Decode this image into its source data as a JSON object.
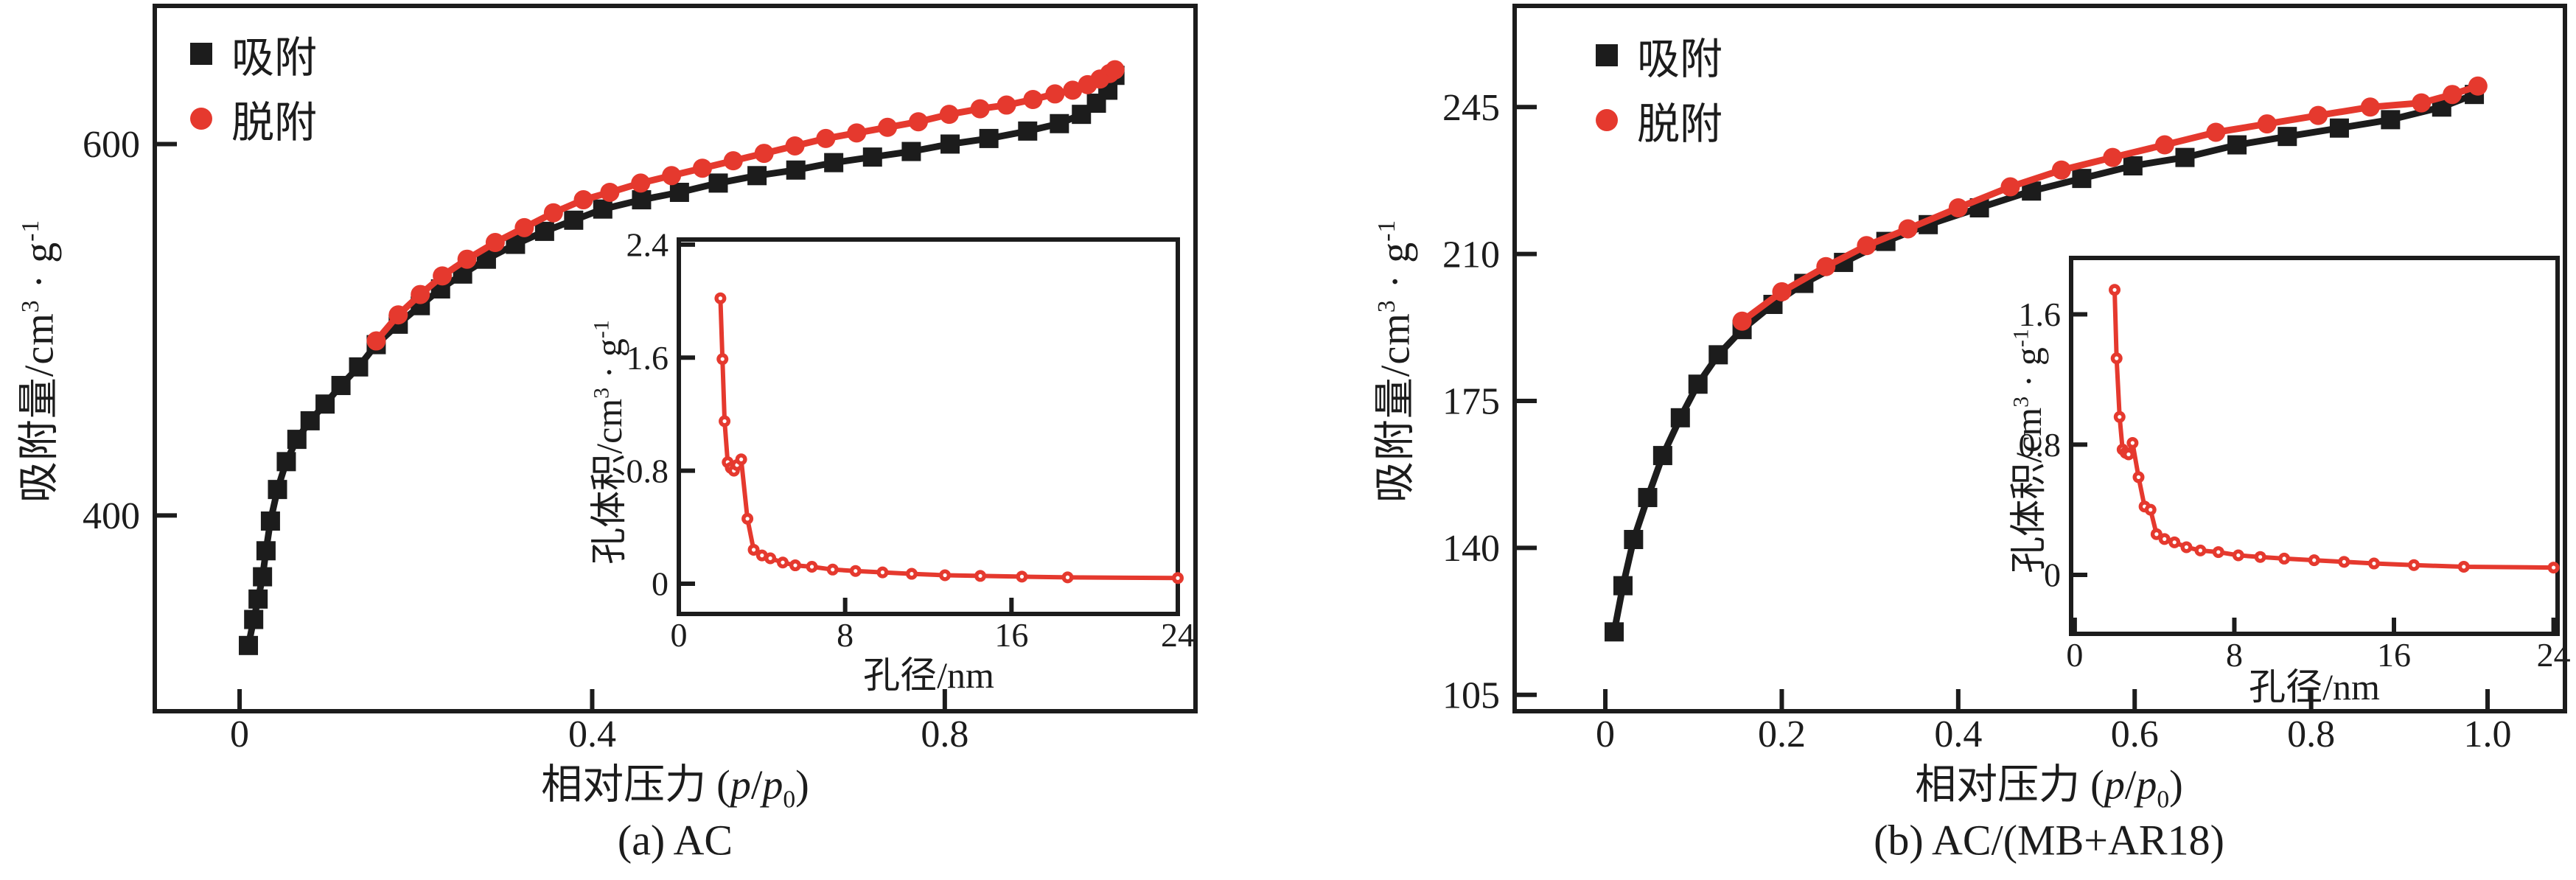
{
  "page": {
    "background": "#ffffff"
  },
  "colors": {
    "adsorption": "#1c1c1c",
    "desorption": "#e5392e",
    "frame": "#1c1c1c",
    "pore_curve": "#e5392e"
  },
  "legend": {
    "adsorption_label": "吸附",
    "desorption_label": "脱附"
  },
  "labels": {
    "y_main_prefix": "吸附量/cm",
    "y_main_sup1": "3",
    "y_main_mid": " · g",
    "y_main_sup2": "-1",
    "y_inset_prefix": "孔体积/cm",
    "y_inset_sup1": "3",
    "y_inset_mid": " · g",
    "y_inset_sup2": "-1",
    "x_main_prefix": "相对压力 (",
    "x_main_p1": "p",
    "x_main_slash": "/",
    "x_main_p2": "p",
    "x_main_sub": "0",
    "x_main_close": ")",
    "x_inset_label": "孔径/nm"
  },
  "captions": {
    "a": "(a) AC",
    "b": "(b) AC/(MB+AR18)"
  },
  "chart_data": [
    {
      "id": "a",
      "type": "line",
      "title": "(a) AC",
      "xlabel": "相对压力 (p/p0)",
      "ylabel": "吸附量/cm3·g-1",
      "xlim": [
        -0.0962,
        1.0844
      ],
      "ylim": [
        294.6,
        674.4
      ],
      "xticks": {
        "values": [
          0,
          0.4,
          0.8
        ],
        "labels": [
          "0",
          "0.4",
          "0.8"
        ]
      },
      "yticks": {
        "values": [
          400,
          600
        ],
        "labels": [
          "400",
          "600"
        ]
      },
      "legend_position": "top-left",
      "grid": false,
      "series": [
        {
          "name": "吸附",
          "marker": "square",
          "color": "#1c1c1c",
          "points": [
            [
              0.01,
              330
            ],
            [
              0.016,
              344
            ],
            [
              0.021,
              355
            ],
            [
              0.026,
              367
            ],
            [
              0.03,
              381
            ],
            [
              0.035,
              397
            ],
            [
              0.043,
              414
            ],
            [
              0.053,
              429
            ],
            [
              0.065,
              441
            ],
            [
              0.08,
              451
            ],
            [
              0.097,
              460
            ],
            [
              0.115,
              470
            ],
            [
              0.135,
              480
            ],
            [
              0.155,
              492
            ],
            [
              0.18,
              503
            ],
            [
              0.205,
              513
            ],
            [
              0.228,
              522
            ],
            [
              0.253,
              530
            ],
            [
              0.28,
              538
            ],
            [
              0.313,
              546
            ],
            [
              0.346,
              553
            ],
            [
              0.379,
              559
            ],
            [
              0.412,
              565
            ],
            [
              0.456,
              570
            ],
            [
              0.499,
              574
            ],
            [
              0.543,
              579
            ],
            [
              0.587,
              583
            ],
            [
              0.631,
              586
            ],
            [
              0.674,
              590
            ],
            [
              0.718,
              593
            ],
            [
              0.762,
              596
            ],
            [
              0.806,
              600
            ],
            [
              0.85,
              603
            ],
            [
              0.894,
              607
            ],
            [
              0.93,
              611
            ],
            [
              0.955,
              616
            ],
            [
              0.972,
              622
            ],
            [
              0.985,
              629
            ],
            [
              0.993,
              637
            ]
          ]
        },
        {
          "name": "脱附",
          "marker": "circle",
          "color": "#e5392e",
          "points": [
            [
              0.155,
              494
            ],
            [
              0.18,
              508
            ],
            [
              0.205,
              519
            ],
            [
              0.23,
              529
            ],
            [
              0.258,
              538
            ],
            [
              0.29,
              547
            ],
            [
              0.323,
              555
            ],
            [
              0.356,
              563
            ],
            [
              0.39,
              570
            ],
            [
              0.42,
              574
            ],
            [
              0.455,
              579
            ],
            [
              0.49,
              583
            ],
            [
              0.525,
              587
            ],
            [
              0.56,
              591
            ],
            [
              0.595,
              595
            ],
            [
              0.63,
              599
            ],
            [
              0.665,
              603
            ],
            [
              0.7,
              606
            ],
            [
              0.735,
              609
            ],
            [
              0.77,
              612
            ],
            [
              0.805,
              616
            ],
            [
              0.84,
              619
            ],
            [
              0.87,
              621
            ],
            [
              0.9,
              624
            ],
            [
              0.925,
              627
            ],
            [
              0.945,
              629
            ],
            [
              0.962,
              632
            ],
            [
              0.976,
              635
            ],
            [
              0.987,
              638
            ],
            [
              0.993,
              640
            ]
          ]
        }
      ],
      "inset": {
        "type": "line",
        "xlabel": "孔径/nm",
        "ylabel": "孔体积/cm3·g-1",
        "xlim": [
          0,
          24
        ],
        "ylim": [
          -0.214,
          2.436
        ],
        "xticks": {
          "values": [
            0,
            8,
            16,
            24
          ],
          "labels": [
            "0",
            "8",
            "16",
            "24"
          ]
        },
        "yticks": {
          "values": [
            0,
            0.8,
            1.6,
            2.4
          ],
          "labels": [
            "0",
            "0.8",
            "1.6",
            "2.4"
          ]
        },
        "series": [
          {
            "name": "孔体积",
            "marker": "dot-open",
            "color": "#e5392e",
            "points": [
              [
                2.0,
                2.02
              ],
              [
                2.1,
                1.59
              ],
              [
                2.2,
                1.15
              ],
              [
                2.35,
                0.86
              ],
              [
                2.5,
                0.82
              ],
              [
                2.65,
                0.8
              ],
              [
                2.8,
                0.84
              ],
              [
                3.0,
                0.88
              ],
              [
                3.3,
                0.46
              ],
              [
                3.6,
                0.24
              ],
              [
                4.0,
                0.2
              ],
              [
                4.4,
                0.18
              ],
              [
                5.0,
                0.15
              ],
              [
                5.6,
                0.13
              ],
              [
                6.4,
                0.12
              ],
              [
                7.4,
                0.1
              ],
              [
                8.5,
                0.09
              ],
              [
                9.8,
                0.08
              ],
              [
                11.2,
                0.07
              ],
              [
                12.8,
                0.06
              ],
              [
                14.5,
                0.055
              ],
              [
                16.5,
                0.05
              ],
              [
                18.7,
                0.045
              ],
              [
                24.0,
                0.04
              ]
            ]
          }
        ]
      }
    },
    {
      "id": "b",
      "type": "line",
      "title": "(b) AC/(MB+AR18)",
      "xlabel": "相对压力 (p/p0)",
      "ylabel": "吸附量/cm3·g-1",
      "xlim": [
        -0.1028,
        1.0877
      ],
      "ylim": [
        101.1,
        269.1
      ],
      "xticks": {
        "values": [
          0,
          0.2,
          0.4,
          0.6,
          0.8,
          1.0
        ],
        "labels": [
          "0",
          "0.2",
          "0.4",
          "0.6",
          "0.8",
          "1.0"
        ]
      },
      "yticks": {
        "values": [
          105,
          140,
          175,
          210,
          245
        ],
        "labels": [
          "105",
          "140",
          "175",
          "210",
          "245"
        ]
      },
      "legend_position": "top-left",
      "grid": false,
      "series": [
        {
          "name": "吸附",
          "marker": "square",
          "color": "#1c1c1c",
          "points": [
            [
              0.01,
              120
            ],
            [
              0.02,
              131
            ],
            [
              0.032,
              142
            ],
            [
              0.048,
              152
            ],
            [
              0.065,
              162
            ],
            [
              0.085,
              171
            ],
            [
              0.105,
              179
            ],
            [
              0.128,
              186
            ],
            [
              0.155,
              192
            ],
            [
              0.19,
              198
            ],
            [
              0.225,
              203
            ],
            [
              0.27,
              208
            ],
            [
              0.318,
              213
            ],
            [
              0.366,
              217
            ],
            [
              0.424,
              221
            ],
            [
              0.483,
              225
            ],
            [
              0.54,
              228
            ],
            [
              0.598,
              231
            ],
            [
              0.657,
              233
            ],
            [
              0.716,
              236
            ],
            [
              0.773,
              238
            ],
            [
              0.832,
              240
            ],
            [
              0.89,
              242
            ],
            [
              0.948,
              245
            ],
            [
              0.985,
              248
            ]
          ]
        },
        {
          "name": "脱附",
          "marker": "circle",
          "color": "#e5392e",
          "points": [
            [
              0.155,
              194
            ],
            [
              0.2,
              201
            ],
            [
              0.25,
              207
            ],
            [
              0.296,
              212
            ],
            [
              0.343,
              216
            ],
            [
              0.4,
              221
            ],
            [
              0.459,
              226
            ],
            [
              0.517,
              230
            ],
            [
              0.575,
              233
            ],
            [
              0.634,
              236
            ],
            [
              0.692,
              239
            ],
            [
              0.75,
              241
            ],
            [
              0.808,
              243
            ],
            [
              0.867,
              245
            ],
            [
              0.925,
              246
            ],
            [
              0.96,
              248
            ],
            [
              0.989,
              250
            ]
          ]
        }
      ],
      "inset": {
        "type": "line",
        "xlabel": "孔径/nm",
        "ylabel": "孔体积/cm3·g-1",
        "xlim": [
          -0.18,
          24.2
        ],
        "ylim": [
          -0.362,
          1.946
        ],
        "xticks": {
          "values": [
            0,
            8,
            16,
            24
          ],
          "labels": [
            "0",
            "8",
            "16",
            "24"
          ]
        },
        "yticks": {
          "values": [
            0,
            0.8,
            1.6
          ],
          "labels": [
            "0",
            "0.8",
            "1.6"
          ]
        },
        "series": [
          {
            "name": "孔体积",
            "marker": "dot-open",
            "color": "#e5392e",
            "points": [
              [
                2.0,
                1.75
              ],
              [
                2.1,
                1.33
              ],
              [
                2.25,
                0.97
              ],
              [
                2.4,
                0.77
              ],
              [
                2.55,
                0.75
              ],
              [
                2.7,
                0.74
              ],
              [
                2.9,
                0.81
              ],
              [
                3.2,
                0.6
              ],
              [
                3.5,
                0.42
              ],
              [
                3.8,
                0.4
              ],
              [
                4.1,
                0.25
              ],
              [
                4.5,
                0.22
              ],
              [
                5.0,
                0.2
              ],
              [
                5.6,
                0.17
              ],
              [
                6.3,
                0.15
              ],
              [
                7.2,
                0.14
              ],
              [
                8.2,
                0.12
              ],
              [
                9.3,
                0.11
              ],
              [
                10.5,
                0.1
              ],
              [
                12.0,
                0.09
              ],
              [
                13.5,
                0.08
              ],
              [
                15.0,
                0.07
              ],
              [
                17.0,
                0.06
              ],
              [
                19.5,
                0.05
              ],
              [
                24.0,
                0.045
              ]
            ]
          }
        ]
      }
    }
  ]
}
